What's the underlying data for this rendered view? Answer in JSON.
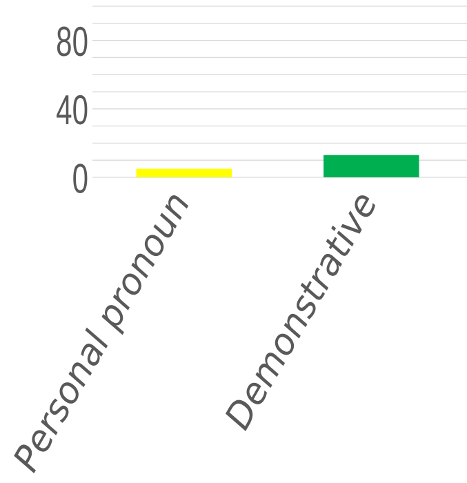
{
  "chart_data": {
    "type": "bar",
    "categories": [
      "Personal pronoun",
      "Demonstrative"
    ],
    "values": [
      5,
      13
    ],
    "colors": [
      "#ffff00",
      "#00b050"
    ],
    "ylim": [
      0,
      100
    ],
    "yticks": [
      0,
      40,
      80
    ],
    "ytick_labels": [
      "0",
      "40",
      "80"
    ],
    "grid": true,
    "legend": "none"
  }
}
